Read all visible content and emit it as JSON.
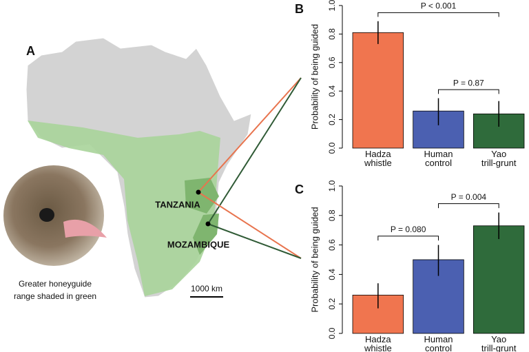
{
  "panel_a": {
    "label": "A",
    "countries": [
      "TANZANIA",
      "MOZAMBIQUE"
    ],
    "scale": "1000 km",
    "caption": [
      "Greater honeyguide",
      "range shaded in green"
    ]
  },
  "chart_data": [
    {
      "type": "bar",
      "panel_label": "B",
      "ylabel": "Probability of being guided",
      "categories": [
        "Hadza whistle",
        "Human control",
        "Yao trill-grunt"
      ],
      "values": [
        0.81,
        0.26,
        0.24
      ],
      "ci": [
        [
          0.73,
          0.89
        ],
        [
          0.16,
          0.35
        ],
        [
          0.15,
          0.33
        ]
      ],
      "colors": [
        "#f0754f",
        "#4b60b1",
        "#2f6b3b"
      ],
      "ylim": [
        0,
        1
      ],
      "yticks": [
        {
          "value": 0,
          "label": "0.0"
        },
        0.2,
        0.4,
        0.6,
        0.8,
        {
          "value": 1,
          "label": "1.0"
        }
      ],
      "annotations": [
        {
          "text": "P < 0.001",
          "from": 0,
          "to": 2
        },
        {
          "text": "P = 0.87",
          "from": 1,
          "to": 2
        }
      ]
    },
    {
      "type": "bar",
      "panel_label": "C",
      "ylabel": "Probability of being guided",
      "categories": [
        "Hadza whistle",
        "Human control",
        "Yao trill-grunt"
      ],
      "values": [
        0.26,
        0.5,
        0.73
      ],
      "ci": [
        [
          0.17,
          0.34
        ],
        [
          0.39,
          0.6
        ],
        [
          0.64,
          0.82
        ]
      ],
      "colors": [
        "#f0754f",
        "#4b60b1",
        "#2f6b3b"
      ],
      "ylim": [
        0,
        1
      ],
      "yticks": [
        {
          "value": 0,
          "label": "0.0"
        },
        0.2,
        0.4,
        0.6,
        0.8,
        {
          "value": 1,
          "label": "1.0"
        }
      ],
      "annotations": [
        {
          "text": "P = 0.080",
          "from": 0,
          "to": 1
        },
        {
          "text": "P = 0.004",
          "from": 1,
          "to": 2
        }
      ]
    }
  ]
}
